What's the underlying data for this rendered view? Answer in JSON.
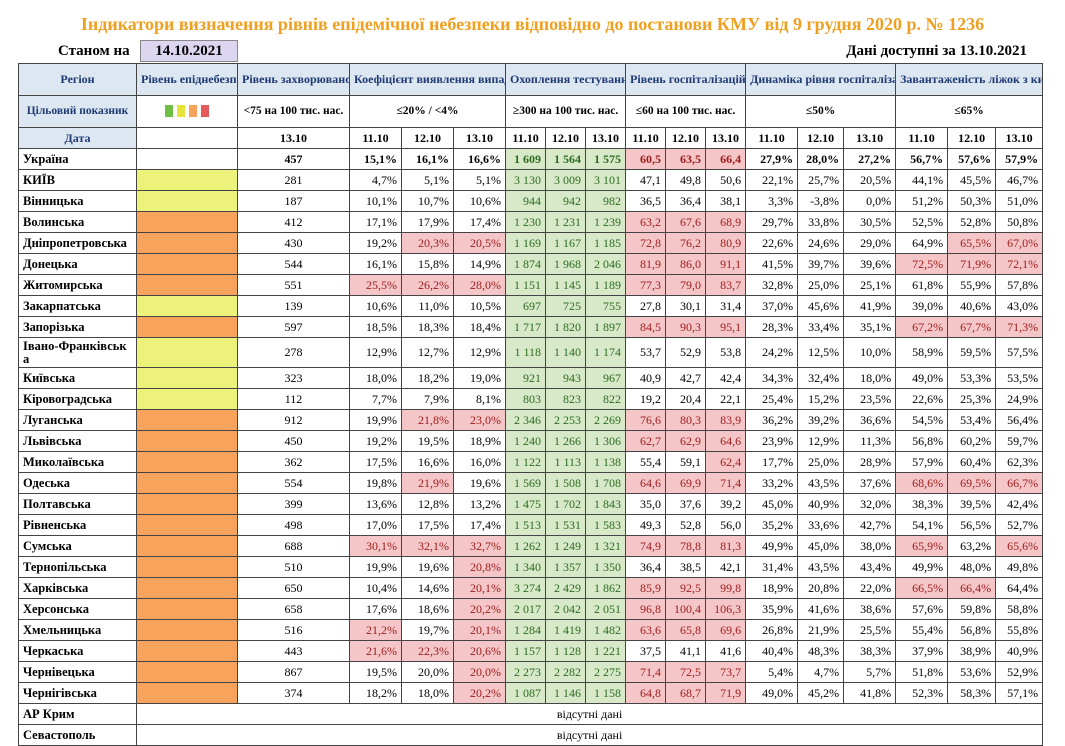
{
  "title": "Індикатори визначення рівнів епідемічної небезпеки відповідно до постанови КМУ від 9 грудня 2020 р. № 1236",
  "as_of_label": "Станом на",
  "as_of_date": "14.10.2021",
  "data_available": "Дані доступні за 13.10.2021",
  "headers": {
    "region": "Регіон",
    "level": "Рівень епіднебезпеки",
    "morbidity": "Рівень захворюваності",
    "detection": "Коефіцієнт виявлення випадків інфікування",
    "testing": "Охоплення тестуванням",
    "hosp": "Рівень госпіталізацій",
    "dynamics": "Динаміка рівня госпіталізацій",
    "oxygen": "Завантаженість ліжок з киснем"
  },
  "targets": {
    "label": "Цільовий показник",
    "morbidity": "<75 на 100 тис. нас.",
    "detection": "≤20% / <4%",
    "testing": "≥300 на 100 тис. нас.",
    "hosp": "≤60 на 100 тис. нас.",
    "dynamics": "≤50%",
    "oxygen": "≤65%"
  },
  "level_icon_colors": [
    "#6fbf44",
    "#e6e33a",
    "#f7a35c",
    "#e35b5b"
  ],
  "dates": {
    "label": "Дата",
    "morbidity": "13.10",
    "triple": [
      "11.10",
      "12.10",
      "13.10"
    ]
  },
  "rows": [
    {
      "name": "Україна",
      "level": "",
      "m": "457",
      "d": [
        "15,1%",
        "16,1%",
        "16,6%"
      ],
      "t": [
        "1 609",
        "1 564",
        "1 575"
      ],
      "h": [
        "60,5",
        "63,5",
        "66,4"
      ],
      "dy": [
        "27,9%",
        "28,0%",
        "27,2%"
      ],
      "o": [
        "56,7%",
        "57,6%",
        "57,9%"
      ],
      "hr": [
        1,
        1,
        1
      ],
      "dr": [
        0,
        0,
        0
      ],
      "or": [
        0,
        0,
        0
      ],
      "bold": true
    },
    {
      "name": "КИЇВ",
      "level": "yel",
      "m": "281",
      "d": [
        "4,7%",
        "5,1%",
        "5,1%"
      ],
      "t": [
        "3 130",
        "3 009",
        "3 101"
      ],
      "h": [
        "47,1",
        "49,8",
        "50,6"
      ],
      "dy": [
        "22,1%",
        "25,7%",
        "20,5%"
      ],
      "o": [
        "44,1%",
        "45,5%",
        "46,7%"
      ],
      "hr": [
        0,
        0,
        0
      ],
      "dr": [
        0,
        0,
        0
      ],
      "or": [
        0,
        0,
        0
      ]
    },
    {
      "name": "Вінницька",
      "level": "yel",
      "m": "187",
      "d": [
        "10,1%",
        "10,7%",
        "10,6%"
      ],
      "t": [
        "944",
        "942",
        "982"
      ],
      "h": [
        "36,5",
        "36,4",
        "38,1"
      ],
      "dy": [
        "3,3%",
        "-3,8%",
        "0,0%"
      ],
      "o": [
        "51,2%",
        "50,3%",
        "51,0%"
      ],
      "hr": [
        0,
        0,
        0
      ],
      "dr": [
        0,
        0,
        0
      ],
      "or": [
        0,
        0,
        0
      ]
    },
    {
      "name": "Волинська",
      "level": "org",
      "m": "412",
      "d": [
        "17,1%",
        "17,9%",
        "17,4%"
      ],
      "t": [
        "1 230",
        "1 231",
        "1 239"
      ],
      "h": [
        "63,2",
        "67,6",
        "68,9"
      ],
      "dy": [
        "29,7%",
        "33,8%",
        "30,5%"
      ],
      "o": [
        "52,5%",
        "52,8%",
        "50,8%"
      ],
      "hr": [
        1,
        1,
        1
      ],
      "dr": [
        0,
        0,
        0
      ],
      "or": [
        0,
        0,
        0
      ]
    },
    {
      "name": "Дніпропетровська",
      "level": "org",
      "m": "430",
      "d": [
        "19,2%",
        "20,3%",
        "20,5%"
      ],
      "t": [
        "1 169",
        "1 167",
        "1 185"
      ],
      "h": [
        "72,8",
        "76,2",
        "80,9"
      ],
      "dy": [
        "22,6%",
        "24,6%",
        "29,0%"
      ],
      "o": [
        "64,9%",
        "65,5%",
        "67,0%"
      ],
      "hr": [
        1,
        1,
        1
      ],
      "dr": [
        0,
        1,
        1
      ],
      "or": [
        0,
        1,
        1
      ]
    },
    {
      "name": "Донецька",
      "level": "org",
      "m": "544",
      "d": [
        "16,1%",
        "15,8%",
        "14,9%"
      ],
      "t": [
        "1 874",
        "1 968",
        "2 046"
      ],
      "h": [
        "81,9",
        "86,0",
        "91,1"
      ],
      "dy": [
        "41,5%",
        "39,7%",
        "39,6%"
      ],
      "o": [
        "72,5%",
        "71,9%",
        "72,1%"
      ],
      "hr": [
        1,
        1,
        1
      ],
      "dr": [
        0,
        0,
        0
      ],
      "or": [
        1,
        1,
        1
      ]
    },
    {
      "name": "Житомирська",
      "level": "org",
      "m": "551",
      "d": [
        "25,5%",
        "26,2%",
        "28,0%"
      ],
      "t": [
        "1 151",
        "1 145",
        "1 189"
      ],
      "h": [
        "77,3",
        "79,0",
        "83,7"
      ],
      "dy": [
        "32,8%",
        "25,0%",
        "25,1%"
      ],
      "o": [
        "61,8%",
        "55,9%",
        "57,8%"
      ],
      "hr": [
        1,
        1,
        1
      ],
      "dr": [
        1,
        1,
        1
      ],
      "or": [
        0,
        0,
        0
      ]
    },
    {
      "name": "Закарпатська",
      "level": "yel",
      "m": "139",
      "d": [
        "10,6%",
        "11,0%",
        "10,5%"
      ],
      "t": [
        "697",
        "725",
        "755"
      ],
      "h": [
        "27,8",
        "30,1",
        "31,4"
      ],
      "dy": [
        "37,0%",
        "45,6%",
        "41,9%"
      ],
      "o": [
        "39,0%",
        "40,6%",
        "43,0%"
      ],
      "hr": [
        0,
        0,
        0
      ],
      "dr": [
        0,
        0,
        0
      ],
      "or": [
        0,
        0,
        0
      ]
    },
    {
      "name": "Запорізька",
      "level": "org",
      "m": "597",
      "d": [
        "18,5%",
        "18,3%",
        "18,4%"
      ],
      "t": [
        "1 717",
        "1 820",
        "1 897"
      ],
      "h": [
        "84,5",
        "90,3",
        "95,1"
      ],
      "dy": [
        "28,3%",
        "33,4%",
        "35,1%"
      ],
      "o": [
        "67,2%",
        "67,7%",
        "71,3%"
      ],
      "hr": [
        1,
        1,
        1
      ],
      "dr": [
        0,
        0,
        0
      ],
      "or": [
        1,
        1,
        1
      ]
    },
    {
      "name": "Івано-Франківська",
      "level": "yel",
      "m": "278",
      "d": [
        "12,9%",
        "12,7%",
        "12,9%"
      ],
      "t": [
        "1 118",
        "1 140",
        "1 174"
      ],
      "h": [
        "53,7",
        "52,9",
        "53,8"
      ],
      "dy": [
        "24,2%",
        "12,5%",
        "10,0%"
      ],
      "o": [
        "58,9%",
        "59,5%",
        "57,5%"
      ],
      "hr": [
        0,
        0,
        0
      ],
      "dr": [
        0,
        0,
        0
      ],
      "or": [
        0,
        0,
        0
      ],
      "tall": true
    },
    {
      "name": "Київська",
      "level": "yel",
      "m": "323",
      "d": [
        "18,0%",
        "18,2%",
        "19,0%"
      ],
      "t": [
        "921",
        "943",
        "967"
      ],
      "h": [
        "40,9",
        "42,7",
        "42,4"
      ],
      "dy": [
        "34,3%",
        "32,4%",
        "18,0%"
      ],
      "o": [
        "49,0%",
        "53,3%",
        "53,5%"
      ],
      "hr": [
        0,
        0,
        0
      ],
      "dr": [
        0,
        0,
        0
      ],
      "or": [
        0,
        0,
        0
      ]
    },
    {
      "name": "Кіровоградська",
      "level": "yel",
      "m": "112",
      "d": [
        "7,7%",
        "7,9%",
        "8,1%"
      ],
      "t": [
        "803",
        "823",
        "822"
      ],
      "h": [
        "19,2",
        "20,4",
        "22,1"
      ],
      "dy": [
        "25,4%",
        "15,2%",
        "23,5%"
      ],
      "o": [
        "22,6%",
        "25,3%",
        "24,9%"
      ],
      "hr": [
        0,
        0,
        0
      ],
      "dr": [
        0,
        0,
        0
      ],
      "or": [
        0,
        0,
        0
      ]
    },
    {
      "name": "Луганська",
      "level": "org",
      "m": "912",
      "d": [
        "19,9%",
        "21,8%",
        "23,0%"
      ],
      "t": [
        "2 346",
        "2 253",
        "2 269"
      ],
      "h": [
        "76,6",
        "80,3",
        "83,9"
      ],
      "dy": [
        "36,2%",
        "39,2%",
        "36,6%"
      ],
      "o": [
        "54,5%",
        "53,4%",
        "56,4%"
      ],
      "hr": [
        1,
        1,
        1
      ],
      "dr": [
        0,
        1,
        1
      ],
      "or": [
        0,
        0,
        0
      ]
    },
    {
      "name": "Львівська",
      "level": "org",
      "m": "450",
      "d": [
        "19,2%",
        "19,5%",
        "18,9%"
      ],
      "t": [
        "1 240",
        "1 266",
        "1 306"
      ],
      "h": [
        "62,7",
        "62,9",
        "64,6"
      ],
      "dy": [
        "23,9%",
        "12,9%",
        "11,3%"
      ],
      "o": [
        "56,8%",
        "60,2%",
        "59,7%"
      ],
      "hr": [
        1,
        1,
        1
      ],
      "dr": [
        0,
        0,
        0
      ],
      "or": [
        0,
        0,
        0
      ]
    },
    {
      "name": "Миколаївська",
      "level": "org",
      "m": "362",
      "d": [
        "17,5%",
        "16,6%",
        "16,0%"
      ],
      "t": [
        "1 122",
        "1 113",
        "1 138"
      ],
      "h": [
        "55,4",
        "59,1",
        "62,4"
      ],
      "dy": [
        "17,7%",
        "25,0%",
        "28,9%"
      ],
      "o": [
        "57,9%",
        "60,4%",
        "62,3%"
      ],
      "hr": [
        0,
        0,
        1
      ],
      "dr": [
        0,
        0,
        0
      ],
      "or": [
        0,
        0,
        0
      ]
    },
    {
      "name": "Одеська",
      "level": "org",
      "m": "554",
      "d": [
        "19,8%",
        "21,9%",
        "19,6%"
      ],
      "t": [
        "1 569",
        "1 508",
        "1 708"
      ],
      "h": [
        "64,6",
        "69,9",
        "71,4"
      ],
      "dy": [
        "33,2%",
        "43,5%",
        "37,6%"
      ],
      "o": [
        "68,6%",
        "69,5%",
        "66,7%"
      ],
      "hr": [
        1,
        1,
        1
      ],
      "dr": [
        0,
        1,
        0
      ],
      "or": [
        1,
        1,
        1
      ]
    },
    {
      "name": "Полтавська",
      "level": "org",
      "m": "399",
      "d": [
        "13,6%",
        "12,8%",
        "13,2%"
      ],
      "t": [
        "1 475",
        "1 702",
        "1 843"
      ],
      "h": [
        "35,0",
        "37,6",
        "39,2"
      ],
      "dy": [
        "45,0%",
        "40,9%",
        "32,0%"
      ],
      "o": [
        "38,3%",
        "39,5%",
        "42,4%"
      ],
      "hr": [
        0,
        0,
        0
      ],
      "dr": [
        0,
        0,
        0
      ],
      "or": [
        0,
        0,
        0
      ]
    },
    {
      "name": "Рівненська",
      "level": "org",
      "m": "498",
      "d": [
        "17,0%",
        "17,5%",
        "17,4%"
      ],
      "t": [
        "1 513",
        "1 531",
        "1 583"
      ],
      "h": [
        "49,3",
        "52,8",
        "56,0"
      ],
      "dy": [
        "35,2%",
        "33,6%",
        "42,7%"
      ],
      "o": [
        "54,1%",
        "56,5%",
        "52,7%"
      ],
      "hr": [
        0,
        0,
        0
      ],
      "dr": [
        0,
        0,
        0
      ],
      "or": [
        0,
        0,
        0
      ]
    },
    {
      "name": "Сумська",
      "level": "org",
      "m": "688",
      "d": [
        "30,1%",
        "32,1%",
        "32,7%"
      ],
      "t": [
        "1 262",
        "1 249",
        "1 321"
      ],
      "h": [
        "74,9",
        "78,8",
        "81,3"
      ],
      "dy": [
        "49,9%",
        "45,0%",
        "38,0%"
      ],
      "o": [
        "65,9%",
        "63,2%",
        "65,6%"
      ],
      "hr": [
        1,
        1,
        1
      ],
      "dr": [
        1,
        1,
        1
      ],
      "or": [
        1,
        0,
        1
      ]
    },
    {
      "name": "Тернопільська",
      "level": "org",
      "m": "510",
      "d": [
        "19,9%",
        "19,6%",
        "20,8%"
      ],
      "t": [
        "1 340",
        "1 357",
        "1 350"
      ],
      "h": [
        "36,4",
        "38,5",
        "42,1"
      ],
      "dy": [
        "31,4%",
        "43,5%",
        "43,4%"
      ],
      "o": [
        "49,9%",
        "48,0%",
        "49,8%"
      ],
      "hr": [
        0,
        0,
        0
      ],
      "dr": [
        0,
        0,
        1
      ],
      "or": [
        0,
        0,
        0
      ]
    },
    {
      "name": "Харківська",
      "level": "org",
      "m": "650",
      "d": [
        "10,4%",
        "14,6%",
        "20,1%"
      ],
      "t": [
        "3 274",
        "2 429",
        "1 862"
      ],
      "h": [
        "85,9",
        "92,5",
        "99,8"
      ],
      "dy": [
        "18,9%",
        "20,8%",
        "22,0%"
      ],
      "o": [
        "66,5%",
        "66,4%",
        "64,4%"
      ],
      "hr": [
        1,
        1,
        1
      ],
      "dr": [
        0,
        0,
        1
      ],
      "or": [
        1,
        1,
        0
      ]
    },
    {
      "name": "Херсонська",
      "level": "org",
      "m": "658",
      "d": [
        "17,6%",
        "18,6%",
        "20,2%"
      ],
      "t": [
        "2 017",
        "2 042",
        "2 051"
      ],
      "h": [
        "96,8",
        "100,4",
        "106,3"
      ],
      "dy": [
        "35,9%",
        "41,6%",
        "38,6%"
      ],
      "o": [
        "57,6%",
        "59,8%",
        "58,8%"
      ],
      "hr": [
        1,
        1,
        1
      ],
      "dr": [
        0,
        0,
        1
      ],
      "or": [
        0,
        0,
        0
      ]
    },
    {
      "name": "Хмельницька",
      "level": "org",
      "m": "516",
      "d": [
        "21,2%",
        "19,7%",
        "20,1%"
      ],
      "t": [
        "1 284",
        "1 419",
        "1 482"
      ],
      "h": [
        "63,6",
        "65,8",
        "69,6"
      ],
      "dy": [
        "26,8%",
        "21,9%",
        "25,5%"
      ],
      "o": [
        "55,4%",
        "56,8%",
        "55,8%"
      ],
      "hr": [
        1,
        1,
        1
      ],
      "dr": [
        1,
        0,
        1
      ],
      "or": [
        0,
        0,
        0
      ]
    },
    {
      "name": "Черкаська",
      "level": "org",
      "m": "443",
      "d": [
        "21,6%",
        "22,3%",
        "20,6%"
      ],
      "t": [
        "1 157",
        "1 128",
        "1 221"
      ],
      "h": [
        "37,5",
        "41,1",
        "41,6"
      ],
      "dy": [
        "40,4%",
        "48,3%",
        "38,3%"
      ],
      "o": [
        "37,9%",
        "38,9%",
        "40,9%"
      ],
      "hr": [
        0,
        0,
        0
      ],
      "dr": [
        1,
        1,
        1
      ],
      "or": [
        0,
        0,
        0
      ]
    },
    {
      "name": "Чернівецька",
      "level": "org",
      "m": "867",
      "d": [
        "19,5%",
        "20,0%",
        "20,0%"
      ],
      "t": [
        "2 273",
        "2 282",
        "2 275"
      ],
      "h": [
        "71,4",
        "72,5",
        "73,7"
      ],
      "dy": [
        "5,4%",
        "4,7%",
        "5,7%"
      ],
      "o": [
        "51,8%",
        "53,6%",
        "52,9%"
      ],
      "hr": [
        1,
        1,
        1
      ],
      "dr": [
        0,
        0,
        1
      ],
      "or": [
        0,
        0,
        0
      ]
    },
    {
      "name": "Чернігівська",
      "level": "org",
      "m": "374",
      "d": [
        "18,2%",
        "18,0%",
        "20,2%"
      ],
      "t": [
        "1 087",
        "1 146",
        "1 158"
      ],
      "h": [
        "64,8",
        "68,7",
        "71,9"
      ],
      "dy": [
        "49,0%",
        "45,2%",
        "41,8%"
      ],
      "o": [
        "52,3%",
        "58,3%",
        "57,1%"
      ],
      "hr": [
        1,
        1,
        1
      ],
      "dr": [
        0,
        0,
        1
      ],
      "or": [
        0,
        0,
        0
      ]
    }
  ],
  "missing_rows": [
    {
      "name": "АР Крим",
      "note": "відсутні дані"
    },
    {
      "name": "Севастополь",
      "note": "відсутні дані"
    }
  ]
}
